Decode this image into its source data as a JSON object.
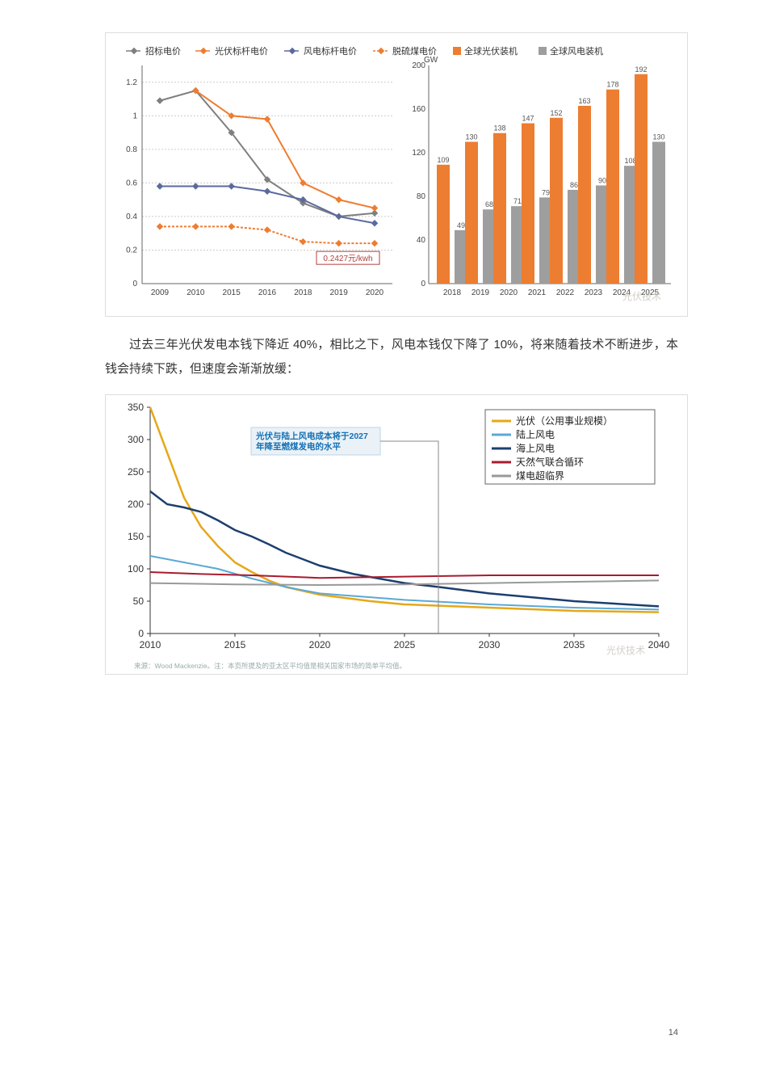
{
  "paragraph": "过去三年光伏发电本钱下降近 40%，相比之下，风电本钱仅下降了 10%，将来随着技术不断进步，本钱会持续下跌，但速度会渐渐放缓：",
  "page_number": "14",
  "watermark_text": "光伏技术",
  "chart1": {
    "type": "combo_line_bar",
    "line_panel": {
      "x_labels": [
        "2009",
        "2010",
        "2015",
        "2016",
        "2018",
        "2019",
        "2020"
      ],
      "y_ticks": [
        0,
        0.2,
        0.4,
        0.6,
        0.8,
        1,
        1.2
      ],
      "ylim": [
        0,
        1.3
      ],
      "series": [
        {
          "name": "招标电价",
          "color": "#7f7f7f",
          "marker": "diamond",
          "values": [
            1.09,
            1.15,
            0.9,
            0.62,
            0.48,
            0.4,
            0.42
          ]
        },
        {
          "name": "光伏标杆电价",
          "color": "#ed7d31",
          "marker": "diamond",
          "values": [
            null,
            1.15,
            1.0,
            0.98,
            0.6,
            0.5,
            0.45
          ]
        },
        {
          "name": "风电标杆电价",
          "color": "#5b6a9e",
          "marker": "diamond",
          "values": [
            0.58,
            0.58,
            0.58,
            0.55,
            0.5,
            0.4,
            0.36
          ]
        },
        {
          "name": "脱硫煤电价",
          "color": "#ed7d31",
          "marker": "diamond",
          "dash": "3 2",
          "values": [
            0.34,
            0.34,
            0.34,
            0.32,
            0.25,
            0.24,
            0.24
          ]
        }
      ],
      "callout": {
        "text": "0.2427元/kwh",
        "x_index": 6,
        "y": 0.24,
        "stroke": "#b0413e"
      }
    },
    "bar_panel": {
      "y_label": "GW",
      "y_ticks": [
        0,
        40,
        80,
        120,
        160,
        200
      ],
      "ylim": [
        0,
        200
      ],
      "x_labels": [
        "2018",
        "2019",
        "2020",
        "2021",
        "2022",
        "2023",
        "2024",
        "2025"
      ],
      "series": [
        {
          "name": "全球光伏装机",
          "color": "#ed7d31",
          "values": [
            109,
            130,
            138,
            147,
            152,
            163,
            178,
            192
          ]
        },
        {
          "name": "全球风电装机",
          "color": "#9e9e9e",
          "values": [
            49,
            68,
            71,
            79,
            86,
            90,
            108,
            130
          ]
        }
      ]
    },
    "legend_markers": {
      "line": "diamond",
      "bar": "square"
    },
    "background": "#ffffff"
  },
  "chart2": {
    "type": "line",
    "x_labels": [
      "2010",
      "2015",
      "2020",
      "2025",
      "2030",
      "2035",
      "2040"
    ],
    "x_values": [
      2010,
      2015,
      2020,
      2025,
      2030,
      2035,
      2040
    ],
    "y_ticks": [
      0,
      50,
      100,
      150,
      200,
      250,
      300,
      350
    ],
    "ylim": [
      0,
      350
    ],
    "series": [
      {
        "name": "光伏（公用事业规模）",
        "color": "#e6a817",
        "width": 2.5,
        "points": [
          [
            2010,
            350
          ],
          [
            2011,
            280
          ],
          [
            2012,
            210
          ],
          [
            2013,
            165
          ],
          [
            2014,
            135
          ],
          [
            2015,
            110
          ],
          [
            2016,
            95
          ],
          [
            2017,
            82
          ],
          [
            2018,
            72
          ],
          [
            2020,
            60
          ],
          [
            2023,
            50
          ],
          [
            2025,
            45
          ],
          [
            2030,
            40
          ],
          [
            2035,
            35
          ],
          [
            2040,
            33
          ]
        ]
      },
      {
        "name": "陆上风电",
        "color": "#5aa9d6",
        "width": 2,
        "points": [
          [
            2010,
            120
          ],
          [
            2012,
            110
          ],
          [
            2014,
            100
          ],
          [
            2016,
            85
          ],
          [
            2018,
            72
          ],
          [
            2020,
            62
          ],
          [
            2025,
            52
          ],
          [
            2030,
            45
          ],
          [
            2035,
            40
          ],
          [
            2040,
            37
          ]
        ]
      },
      {
        "name": "海上风电",
        "color": "#1c3f6e",
        "width": 2.5,
        "points": [
          [
            2010,
            220
          ],
          [
            2011,
            200
          ],
          [
            2012,
            195
          ],
          [
            2013,
            188
          ],
          [
            2014,
            175
          ],
          [
            2015,
            160
          ],
          [
            2016,
            150
          ],
          [
            2017,
            138
          ],
          [
            2018,
            125
          ],
          [
            2019,
            115
          ],
          [
            2020,
            105
          ],
          [
            2022,
            92
          ],
          [
            2025,
            78
          ],
          [
            2027,
            72
          ],
          [
            2030,
            62
          ],
          [
            2035,
            50
          ],
          [
            2040,
            42
          ]
        ]
      },
      {
        "name": "天然气联合循环",
        "color": "#a81c2e",
        "width": 2,
        "points": [
          [
            2010,
            95
          ],
          [
            2013,
            92
          ],
          [
            2016,
            90
          ],
          [
            2020,
            86
          ],
          [
            2025,
            88
          ],
          [
            2030,
            90
          ],
          [
            2035,
            90
          ],
          [
            2040,
            90
          ]
        ]
      },
      {
        "name": "煤电超临界",
        "color": "#999999",
        "width": 2,
        "points": [
          [
            2010,
            78
          ],
          [
            2015,
            76
          ],
          [
            2020,
            75
          ],
          [
            2025,
            76
          ],
          [
            2030,
            78
          ],
          [
            2035,
            80
          ],
          [
            2040,
            82
          ]
        ]
      }
    ],
    "callout": {
      "text": "光伏与陆上风电成本将于2027年降至燃煤发电的水平",
      "box_color": "#1570b3",
      "pointer_x": 2027
    },
    "footnote": "来源：Wood Mackenzie。注：本页所提及的亚太区平均值是相关国家市场的简单平均值。",
    "background": "#ffffff"
  }
}
